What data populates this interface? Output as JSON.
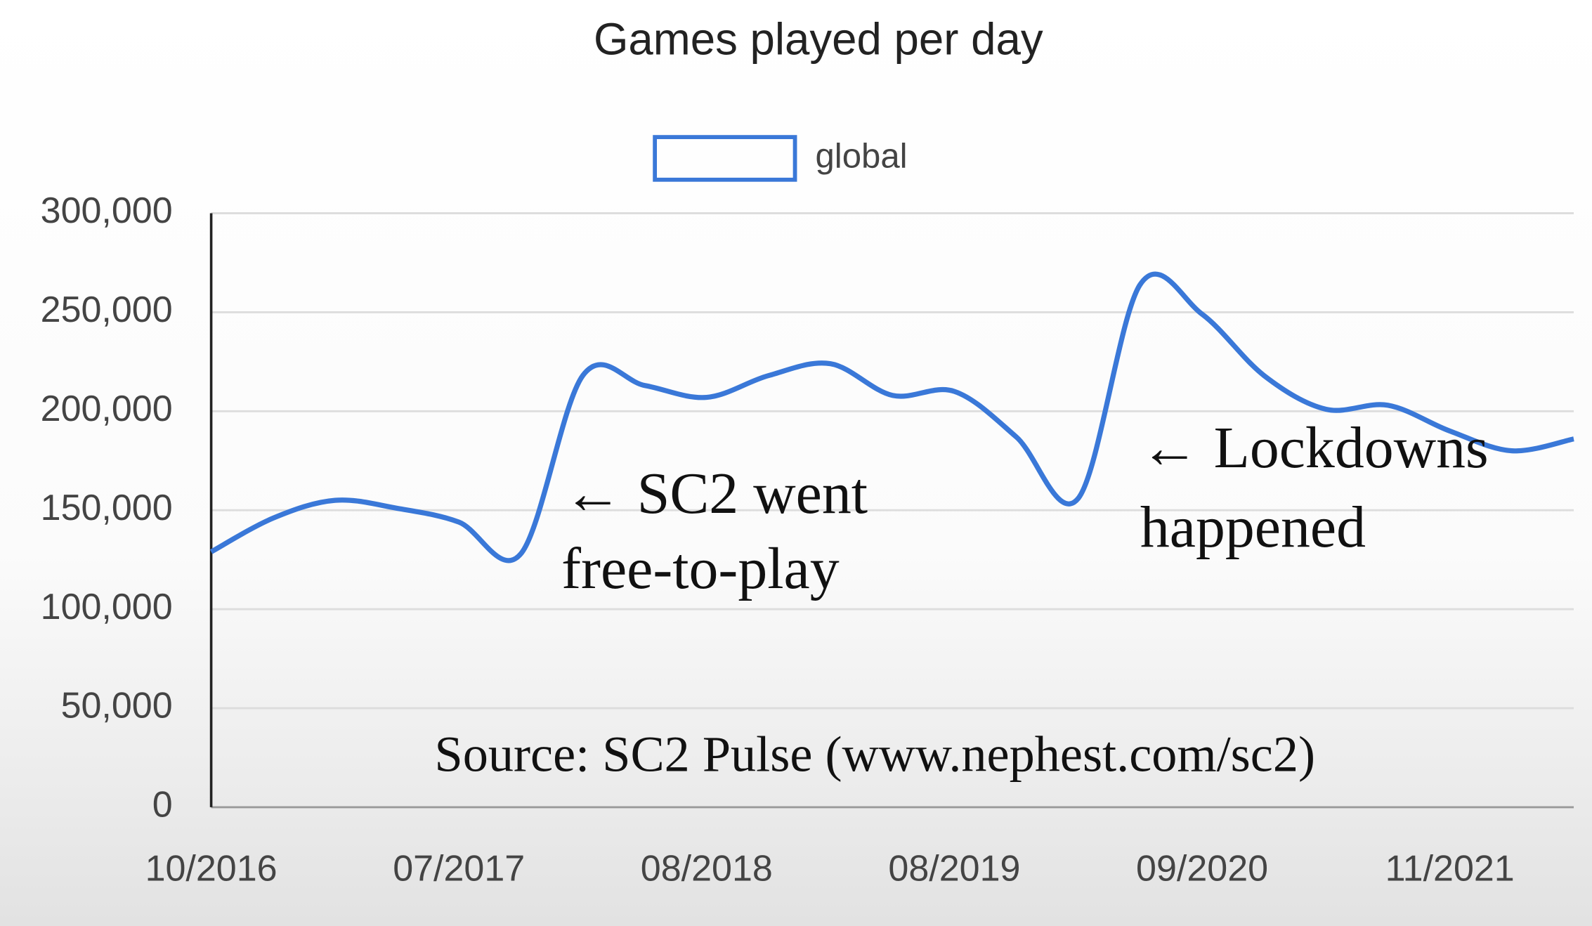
{
  "chart_data": {
    "type": "line",
    "title": "Games played per day",
    "categories": [
      "10/2016",
      null,
      null,
      null,
      "07/2017",
      null,
      null,
      null,
      "08/2018",
      null,
      null,
      null,
      "08/2019",
      null,
      null,
      null,
      "09/2020",
      null,
      null,
      null,
      "11/2021",
      null,
      null
    ],
    "series": [
      {
        "name": "global",
        "color": "#3a78d8",
        "values": [
          129000,
          146000,
          155000,
          151000,
          144000,
          128000,
          218000,
          213000,
          207000,
          218000,
          224000,
          208000,
          210000,
          187000,
          156000,
          264000,
          249000,
          218000,
          201000,
          203000,
          190000,
          180000,
          186000
        ]
      }
    ],
    "ylim": [
      0,
      300000
    ],
    "yticks": [
      0,
      {
        "value": 50000,
        "label": "50,000"
      },
      {
        "value": 100000,
        "label": "100,000"
      },
      {
        "value": 150000,
        "label": "150,000"
      },
      {
        "value": 200000,
        "label": "200,000"
      },
      {
        "value": 250000,
        "label": "250,000"
      },
      {
        "value": 300000,
        "label": "300,000"
      }
    ],
    "grid": true,
    "annotations": [
      "← SC2 went",
      "free-to-play",
      "← Lockdowns",
      "happened",
      "Source: SC2 Pulse (www.nephest.com/sc2)"
    ]
  }
}
